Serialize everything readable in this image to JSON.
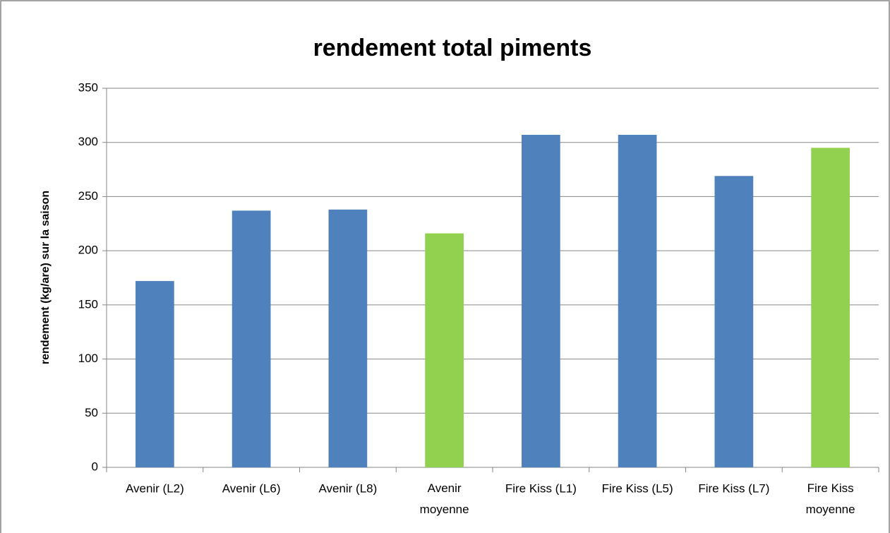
{
  "chart_data": {
    "type": "bar",
    "title": "rendement total piments",
    "y_label": "rendement (kg/are) sur la saison",
    "categories": [
      "Avenir (L2)",
      "Avenir (L6)",
      "Avenir (L8)",
      "Avenir\nmoyenne",
      "Fire Kiss (L1)",
      "Fire Kiss (L5)",
      "Fire Kiss (L7)",
      "Fire Kiss\nmoyenne"
    ],
    "values": [
      172,
      237,
      238,
      216,
      307,
      307,
      269,
      295
    ],
    "colors": [
      "#4f81bd",
      "#4f81bd",
      "#4f81bd",
      "#92d050",
      "#4f81bd",
      "#4f81bd",
      "#4f81bd",
      "#92d050"
    ],
    "ylim": [
      0,
      350
    ],
    "yticks": [
      0,
      50,
      100,
      150,
      200,
      250,
      300,
      350
    ],
    "grid": true
  }
}
